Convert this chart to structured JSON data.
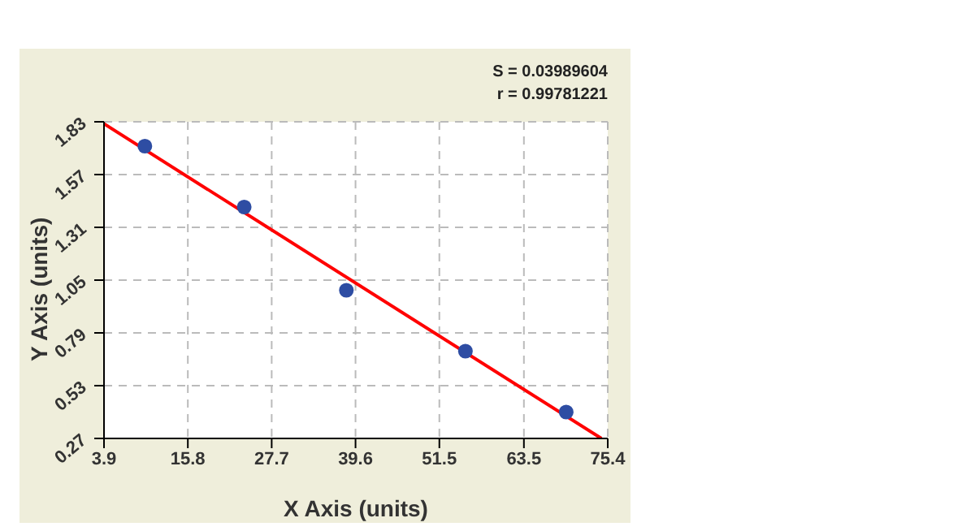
{
  "chart_data": {
    "type": "scatter",
    "xlabel": "X Axis (units)",
    "ylabel": "Y Axis (units)",
    "annotations": [
      "S = 0.03989604",
      "r = 0.99781221"
    ],
    "xlim": [
      3.9,
      75.4
    ],
    "xticks": [
      3.9,
      15.8,
      27.7,
      39.6,
      51.5,
      63.5,
      75.4
    ],
    "ylim": [
      0.27,
      1.83
    ],
    "yticks": [
      0.27,
      0.53,
      0.79,
      1.05,
      1.31,
      1.57,
      1.83
    ],
    "grid": true,
    "series": [
      {
        "marker": "circle",
        "color": "#2e4da3",
        "x": [
          9.7,
          23.8,
          38.3,
          55.2,
          69.5
        ],
        "values": [
          1.71,
          1.41,
          1.0,
          0.7,
          0.4
        ]
      },
      {
        "type": "line",
        "color": "#ff0000",
        "x": [
          3.9,
          74.5
        ],
        "values": [
          1.82,
          0.27
        ]
      }
    ]
  }
}
